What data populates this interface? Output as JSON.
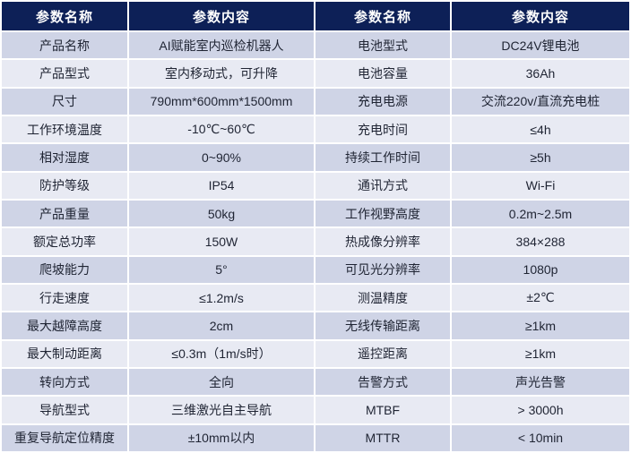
{
  "colors": {
    "header_bg": "#0d2057",
    "header_text": "#ffffff",
    "row_odd_bg": "#cfd4e6",
    "row_even_bg": "#e8eaf3",
    "body_text": "#1f2433",
    "gridline": "#ffffff"
  },
  "table": {
    "headers": [
      "参数名称",
      "参数内容",
      "参数名称",
      "参数内容"
    ],
    "rows": [
      [
        "产品名称",
        "AI赋能室内巡检机器人",
        "电池型式",
        "DC24V锂电池"
      ],
      [
        "产品型式",
        "室内移动式，可升降",
        "电池容量",
        "36Ah"
      ],
      [
        "尺寸",
        "790mm*600mm*1500mm",
        "充电电源",
        "交流220v/直流充电桩"
      ],
      [
        "工作环境温度",
        "-10℃~60℃",
        "充电时间",
        "≤4h"
      ],
      [
        "相对湿度",
        "0~90%",
        "持续工作时间",
        "≥5h"
      ],
      [
        "防护等级",
        "IP54",
        "通讯方式",
        "Wi-Fi"
      ],
      [
        "产品重量",
        "50kg",
        "工作视野高度",
        "0.2m~2.5m"
      ],
      [
        "额定总功率",
        "150W",
        "热成像分辨率",
        "384×288"
      ],
      [
        "爬坡能力",
        "5°",
        "可见光分辨率",
        "1080p"
      ],
      [
        "行走速度",
        "≤1.2m/s",
        "测温精度",
        "±2℃"
      ],
      [
        "最大越障高度",
        "2cm",
        "无线传输距离",
        "≥1km"
      ],
      [
        "最大制动距离",
        "≤0.3m（1m/s时）",
        "遥控距离",
        "≥1km"
      ],
      [
        "转向方式",
        "全向",
        "告警方式",
        "声光告警"
      ],
      [
        "导航型式",
        "三维激光自主导航",
        "MTBF",
        "> 3000h"
      ],
      [
        "重复导航定位精度",
        "±10mm以内",
        "MTTR",
        "< 10min"
      ]
    ]
  }
}
